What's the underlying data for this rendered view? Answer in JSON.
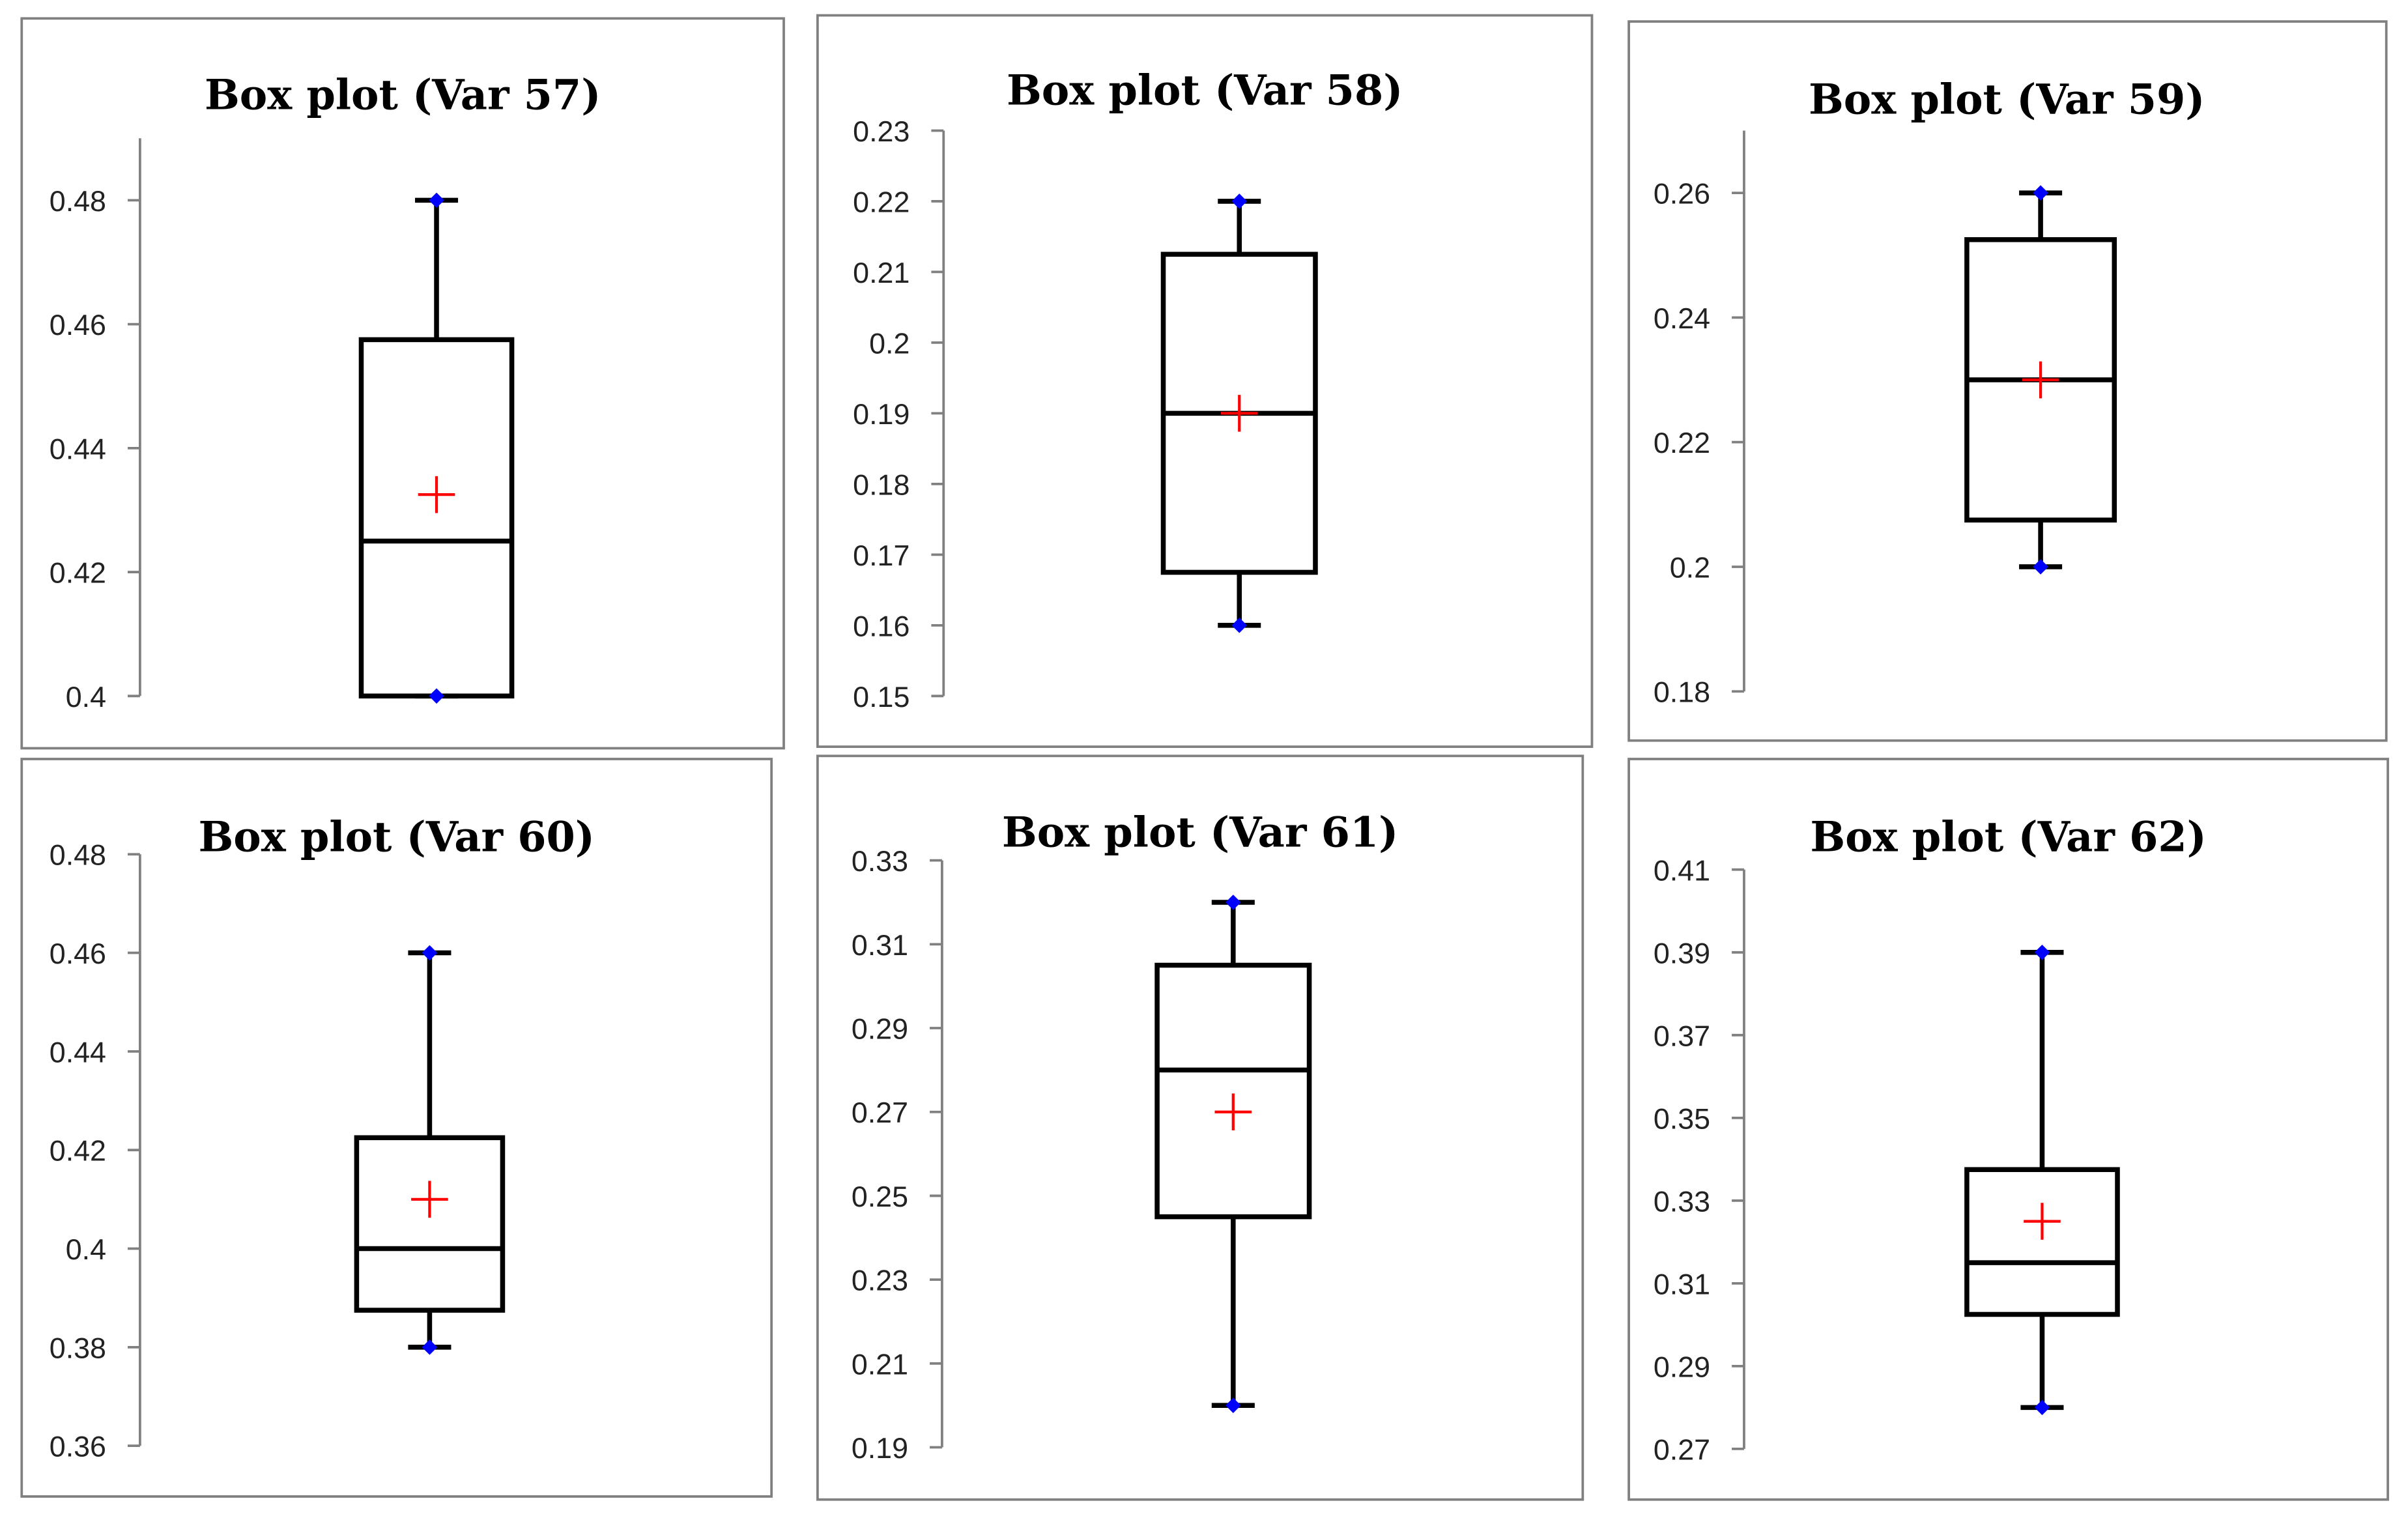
{
  "chart_data": [
    {
      "type": "box",
      "title": "Box plot (Var 57)",
      "ylim": [
        0.4,
        0.49
      ],
      "ticks": [
        "0.4",
        "0.42",
        "0.44",
        "0.46",
        "0.48"
      ],
      "min": 0.4,
      "q1": 0.4,
      "median": 0.425,
      "q3": 0.4575,
      "max": 0.48,
      "mean": 0.4325
    },
    {
      "type": "box",
      "title": "Box plot (Var 58)",
      "ylim": [
        0.15,
        0.23
      ],
      "ticks": [
        "0.15",
        "0.16",
        "0.17",
        "0.18",
        "0.19",
        "0.2",
        "0.21",
        "0.22",
        "0.23"
      ],
      "min": 0.16,
      "q1": 0.1675,
      "median": 0.19,
      "q3": 0.2125,
      "max": 0.22,
      "mean": 0.19
    },
    {
      "type": "box",
      "title": "Box plot (Var 59)",
      "ylim": [
        0.18,
        0.27
      ],
      "ticks": [
        "0.18",
        "0.2",
        "0.22",
        "0.24",
        "0.26"
      ],
      "min": 0.2,
      "q1": 0.2075,
      "median": 0.23,
      "q3": 0.2525,
      "max": 0.26,
      "mean": 0.23
    },
    {
      "type": "box",
      "title": "Box plot (Var 60)",
      "ylim": [
        0.36,
        0.48
      ],
      "ticks": [
        "0.36",
        "0.38",
        "0.4",
        "0.42",
        "0.44",
        "0.46",
        "0.48"
      ],
      "min": 0.38,
      "q1": 0.3875,
      "median": 0.4,
      "q3": 0.4225,
      "max": 0.46,
      "mean": 0.41
    },
    {
      "type": "box",
      "title": "Box plot (Var 61)",
      "ylim": [
        0.19,
        0.33
      ],
      "ticks": [
        "0.19",
        "0.21",
        "0.23",
        "0.25",
        "0.27",
        "0.29",
        "0.31",
        "0.33"
      ],
      "min": 0.2,
      "q1": 0.245,
      "median": 0.28,
      "q3": 0.305,
      "max": 0.32,
      "mean": 0.27
    },
    {
      "type": "box",
      "title": "Box plot (Var 62)",
      "ylim": [
        0.27,
        0.41
      ],
      "ticks": [
        "0.27",
        "0.29",
        "0.31",
        "0.33",
        "0.35",
        "0.37",
        "0.39",
        "0.41"
      ],
      "min": 0.28,
      "q1": 0.3025,
      "median": 0.315,
      "q3": 0.3375,
      "max": 0.39,
      "mean": 0.325
    }
  ],
  "colors": {
    "box": "#000000",
    "extreme_marker": "#0000ff",
    "mean_marker": "#ff0000",
    "axis": "#808080",
    "frame": "#808080"
  }
}
